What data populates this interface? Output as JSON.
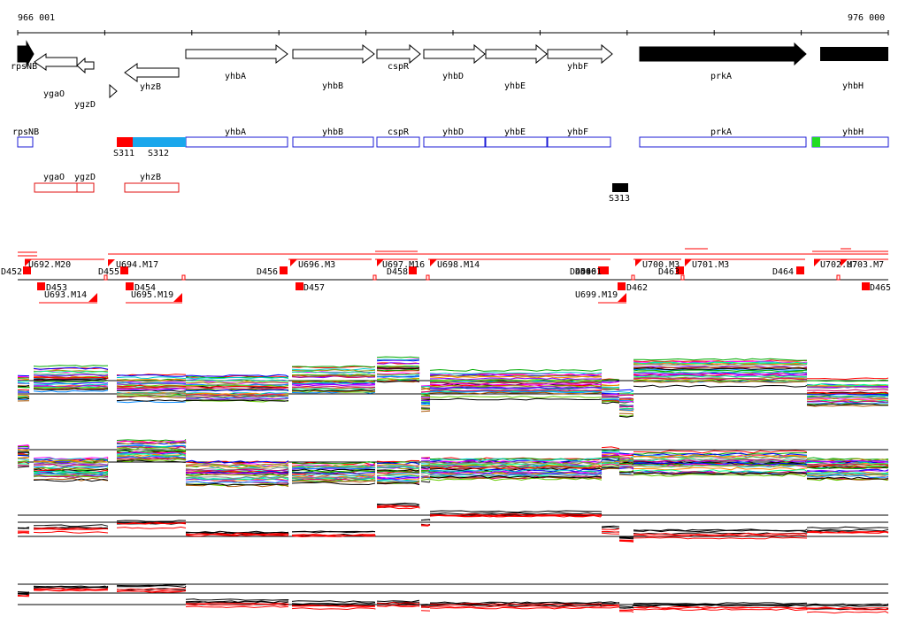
{
  "ruler": {
    "start_label": "966 001",
    "end_label": "976 000"
  },
  "colors": {
    "gene_fill": "#ffffff",
    "gene_fill_dark": "#000000",
    "annot_blue": "#1b1bd6",
    "annot_red": "#e01010",
    "seg_red": "#ff0000",
    "seg_cyan": "#1aa7ec",
    "seg_green": "#22dd22",
    "seg_black": "#000000",
    "feature_red": "#ff0000"
  },
  "gene_track": {
    "genes": [
      {
        "label": "rpsNB",
        "strand": "+",
        "dark": true
      },
      {
        "label": "ygaO",
        "strand": "-",
        "dark": false
      },
      {
        "label": "ygzD",
        "strand": "-",
        "dark": false
      },
      {
        "label": "",
        "strand": "+",
        "dark": false
      },
      {
        "label": "yhzB",
        "strand": "-",
        "dark": false
      },
      {
        "label": "yhbA",
        "strand": "+",
        "dark": false
      },
      {
        "label": "yhbB",
        "strand": "+",
        "dark": false
      },
      {
        "label": "cspR",
        "strand": "+",
        "dark": false
      },
      {
        "label": "yhbD",
        "strand": "+",
        "dark": false
      },
      {
        "label": "yhbE",
        "strand": "+",
        "dark": false
      },
      {
        "label": "yhbF",
        "strand": "+",
        "dark": false
      },
      {
        "label": "prkA",
        "strand": "+",
        "dark": true
      },
      {
        "label": "yhbH",
        "strand": "+",
        "dark": true
      }
    ]
  },
  "annotation_track": {
    "forward_boxes": [
      "rpsNB",
      "yhbA",
      "yhbB",
      "cspR",
      "yhbD",
      "yhbE",
      "yhbF",
      "prkA",
      "yhbH"
    ],
    "reverse_boxes": [
      "ygaO",
      "ygzD",
      "yhzB"
    ],
    "segments": [
      {
        "label": "S311",
        "color": "red"
      },
      {
        "label": "S312",
        "color": "cyan"
      },
      {
        "label": "S313",
        "color": "black"
      },
      {
        "label": "",
        "color": "green"
      }
    ]
  },
  "feature_track": {
    "labels_above": [
      "D452",
      "U692.M20",
      "U694.M17",
      "D455",
      "D456",
      "U696.M3",
      "U697.M16",
      "D458",
      "U698.M14",
      "D459",
      "D460",
      "D461",
      "U700.M3",
      "D463",
      "U701.M3",
      "D464",
      "U702.M7",
      "U703.M7"
    ],
    "labels_below": [
      "D453",
      "U693.M14",
      "D454",
      "U695.M19",
      "D457",
      "U699.M19",
      "D462",
      "D465"
    ]
  },
  "expression_panels": [
    {
      "name": "panel-1"
    },
    {
      "name": "panel-2"
    },
    {
      "name": "panel-3"
    },
    {
      "name": "panel-4"
    }
  ]
}
